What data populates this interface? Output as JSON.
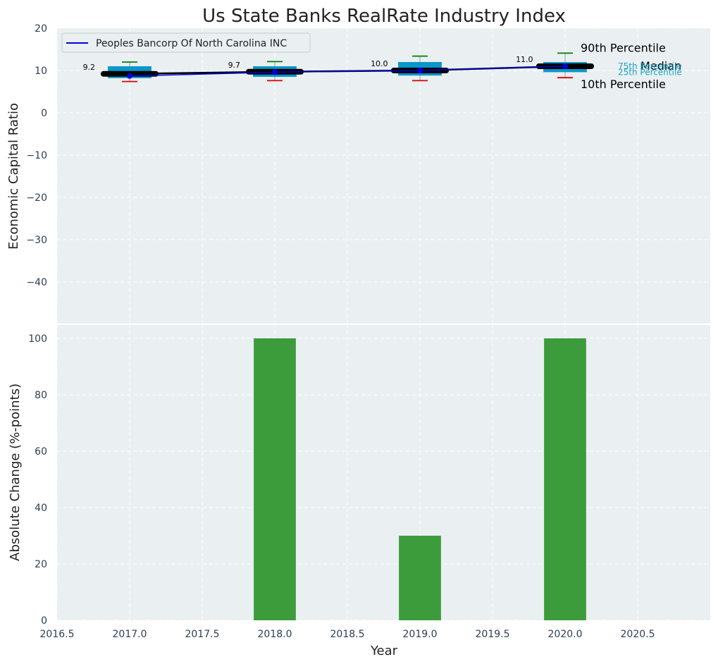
{
  "chart_data": {
    "title": "Us State Banks RealRate Industry Index",
    "x_label": "Year",
    "x_ticks": [
      "2016.5",
      "2017.0",
      "2017.5",
      "2018.0",
      "2018.5",
      "2019.0",
      "2019.5",
      "2020.0",
      "2020.5"
    ],
    "xlim": [
      2016.5,
      2021.0
    ],
    "top": {
      "type": "box",
      "ylabel": "Economic Capital Ratio",
      "ylim": [
        -50,
        20
      ],
      "y_ticks": [
        "20",
        "10",
        "0",
        "−10",
        "−20",
        "−30",
        "−40"
      ],
      "legend": {
        "label": "Peoples Bancorp Of North Carolina INC",
        "position": "top-left"
      },
      "years": [
        2017,
        2018,
        2019,
        2020
      ],
      "p10": [
        7.4,
        7.6,
        7.6,
        8.3
      ],
      "p25": [
        8.2,
        8.5,
        8.8,
        9.6
      ],
      "median": [
        9.2,
        9.7,
        10.0,
        11.0
      ],
      "p75": [
        11.0,
        11.0,
        12.0,
        12.0
      ],
      "p90": [
        12.0,
        12.1,
        13.4,
        14.1
      ],
      "company": [
        8.7,
        9.6,
        10.0,
        11.0
      ],
      "median_labels": [
        "9.2",
        "9.7",
        "10.0",
        "11.0"
      ],
      "annotations": {
        "p90": "90th Percentile",
        "median": "Median",
        "p10": "10th Percentile",
        "p75": "75th Percentile",
        "p25": "25th Percentile"
      }
    },
    "bottom": {
      "type": "bar",
      "ylabel": "Absolute Change (%-points)",
      "ylim": [
        0,
        105
      ],
      "y_ticks": [
        "100",
        "80",
        "60",
        "40",
        "20",
        "0"
      ],
      "x": [
        2018,
        2019,
        2020
      ],
      "values": [
        100,
        30,
        100
      ]
    },
    "colors": {
      "panel_bg": "#eaeff1",
      "box": "#0a97c9",
      "median_line": "#000000",
      "company_line": "#0000dd",
      "p90_whisker": "#008000",
      "p10_whisker": "#dd0000",
      "bar": "#3c9c3c",
      "quartile_text": "#17a3c8"
    }
  }
}
